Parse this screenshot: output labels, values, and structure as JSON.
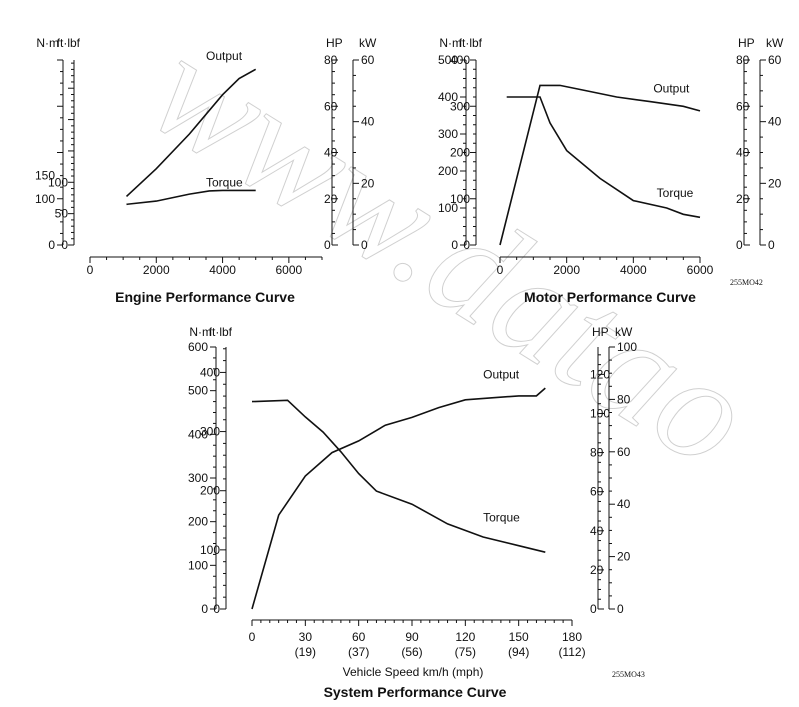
{
  "watermark": "www.datao",
  "chart_data": [
    {
      "id": "engine",
      "type": "line",
      "title": "Engine Performance Curve",
      "xlabel": "",
      "x_ticks": [
        {
          "v": 0,
          "t": "0"
        },
        {
          "v": 2000,
          "t": "2000"
        },
        {
          "v": 4000,
          "t": "4000"
        },
        {
          "v": 6000,
          "t": "6000"
        }
      ],
      "xlim": [
        0,
        7000
      ],
      "axes": [
        {
          "unit": "N·m",
          "lim": [
            0,
            400
          ],
          "ticks": [
            {
              "v": 0,
              "t": "0"
            },
            {
              "v": 100,
              "t": "100"
            },
            {
              "v": 150,
              "t": "150"
            }
          ],
          "minor": 25,
          "major": 100
        },
        {
          "unit": "ft·lbf",
          "lim": [
            0,
            295
          ],
          "ticks": [
            {
              "v": 0,
              "t": "0"
            },
            {
              "v": 50,
              "t": "50"
            },
            {
              "v": 100,
              "t": "100"
            }
          ],
          "minor": 10,
          "major": 50
        },
        {
          "unit": "HP",
          "lim": [
            0,
            80
          ],
          "ticks": [
            {
              "v": 0,
              "t": "0"
            },
            {
              "v": 20,
              "t": "20"
            },
            {
              "v": 40,
              "t": "40"
            },
            {
              "v": 60,
              "t": "60"
            },
            {
              "v": 80,
              "t": "80"
            }
          ],
          "minor": 5,
          "major": 20
        },
        {
          "unit": "kW",
          "lim": [
            0,
            60
          ],
          "ticks": [
            {
              "v": 0,
              "t": "0"
            },
            {
              "v": 20,
              "t": "20"
            },
            {
              "v": 40,
              "t": "40"
            },
            {
              "v": 60,
              "t": "60"
            }
          ],
          "minor": 5,
          "major": 20
        }
      ],
      "series": [
        {
          "name": "Output",
          "axis": 2,
          "x": [
            1100,
            2000,
            3000,
            4000,
            4500,
            5000
          ],
          "y": [
            21,
            33,
            48,
            65,
            72,
            76
          ]
        },
        {
          "name": "Torque",
          "axis": 0,
          "x": [
            1100,
            2000,
            3000,
            3600,
            4000,
            5000
          ],
          "y": [
            88,
            95,
            110,
            117,
            118,
            118
          ]
        }
      ],
      "label_anchors": [
        {
          "x": 3500,
          "y": 80,
          "axis": 2
        },
        {
          "x": 3500,
          "y": 126,
          "axis": 0
        }
      ]
    },
    {
      "id": "motor",
      "type": "line",
      "title": "Motor Performance Curve",
      "code": "255MO42",
      "xlabel": "",
      "x_ticks": [
        {
          "v": 0,
          "t": "0"
        },
        {
          "v": 2000,
          "t": "2000"
        },
        {
          "v": 4000,
          "t": "4000"
        },
        {
          "v": 6000,
          "t": "6000"
        }
      ],
      "xlim": [
        0,
        6000
      ],
      "axes": [
        {
          "unit": "N·m",
          "lim": [
            0,
            500
          ],
          "ticks": [
            {
              "v": 0,
              "t": "0"
            },
            {
              "v": 100,
              "t": "100"
            },
            {
              "v": 200,
              "t": "200"
            },
            {
              "v": 300,
              "t": "300"
            },
            {
              "v": 400,
              "t": "400"
            },
            {
              "v": 500,
              "t": "500"
            }
          ],
          "minor": 25,
          "major": 100
        },
        {
          "unit": "ft·lbf",
          "lim": [
            0,
            400
          ],
          "ticks": [
            {
              "v": 0,
              "t": "0"
            },
            {
              "v": 100,
              "t": "100"
            },
            {
              "v": 200,
              "t": "200"
            },
            {
              "v": 300,
              "t": "300"
            },
            {
              "v": 400,
              "t": "400"
            }
          ],
          "minor": 20,
          "major": 100
        },
        {
          "unit": "HP",
          "lim": [
            0,
            80
          ],
          "ticks": [
            {
              "v": 0,
              "t": "0"
            },
            {
              "v": 20,
              "t": "20"
            },
            {
              "v": 40,
              "t": "40"
            },
            {
              "v": 60,
              "t": "60"
            },
            {
              "v": 80,
              "t": "80"
            }
          ],
          "minor": 5,
          "major": 20
        },
        {
          "unit": "kW",
          "lim": [
            0,
            60
          ],
          "ticks": [
            {
              "v": 0,
              "t": "0"
            },
            {
              "v": 20,
              "t": "20"
            },
            {
              "v": 40,
              "t": "40"
            },
            {
              "v": 60,
              "t": "60"
            }
          ],
          "minor": 5,
          "major": 20
        }
      ],
      "series": [
        {
          "name": "Output",
          "axis": 2,
          "x": [
            0,
            1200,
            1800,
            2500,
            3500,
            4500,
            5500,
            6000
          ],
          "y": [
            0,
            69,
            69,
            67,
            64,
            62,
            60,
            58
          ]
        },
        {
          "name": "Torque",
          "axis": 0,
          "x": [
            200,
            1200,
            1500,
            2000,
            3000,
            4000,
            5000,
            5500,
            6000
          ],
          "y": [
            400,
            400,
            330,
            255,
            180,
            120,
            100,
            83,
            75
          ]
        }
      ],
      "label_anchors": [
        {
          "x": 4600,
          "y": 66,
          "axis": 2
        },
        {
          "x": 4700,
          "y": 130,
          "axis": 0
        }
      ]
    },
    {
      "id": "system",
      "type": "line",
      "title": "System Performance Curve",
      "code": "255MO43",
      "xlabel": "Vehicle Speed km/h (mph)",
      "x_ticks": [
        {
          "v": 0,
          "t": "0"
        },
        {
          "v": 30,
          "t": "30",
          "t2": "(19)"
        },
        {
          "v": 60,
          "t": "60",
          "t2": "(37)"
        },
        {
          "v": 90,
          "t": "90",
          "t2": "(56)"
        },
        {
          "v": 120,
          "t": "120",
          "t2": "(75)"
        },
        {
          "v": 150,
          "t": "150",
          "t2": "(94)"
        },
        {
          "v": 180,
          "t": "180",
          "t2": "(112)"
        }
      ],
      "xlim": [
        0,
        180
      ],
      "axes": [
        {
          "unit": "N·m",
          "lim": [
            0,
            600
          ],
          "ticks": [
            {
              "v": 0,
              "t": "0"
            },
            {
              "v": 100,
              "t": "100"
            },
            {
              "v": 200,
              "t": "200"
            },
            {
              "v": 300,
              "t": "300"
            },
            {
              "v": 400,
              "t": "400"
            },
            {
              "v": 500,
              "t": "500"
            },
            {
              "v": 600,
              "t": "600"
            }
          ],
          "minor": 25,
          "major": 100
        },
        {
          "unit": "ft·lbf",
          "lim": [
            0,
            443
          ],
          "ticks": [
            {
              "v": 0,
              "t": "0"
            },
            {
              "v": 100,
              "t": "100"
            },
            {
              "v": 200,
              "t": "200"
            },
            {
              "v": 300,
              "t": "300"
            },
            {
              "v": 400,
              "t": "400"
            }
          ],
          "minor": 20,
          "major": 100
        },
        {
          "unit": "HP",
          "lim": [
            0,
            134
          ],
          "ticks": [
            {
              "v": 0,
              "t": "0"
            },
            {
              "v": 20,
              "t": "20"
            },
            {
              "v": 40,
              "t": "40"
            },
            {
              "v": 60,
              "t": "60"
            },
            {
              "v": 80,
              "t": "80"
            },
            {
              "v": 100,
              "t": "100"
            },
            {
              "v": 120,
              "t": "120"
            }
          ],
          "minor": 5,
          "major": 20
        },
        {
          "unit": "kW",
          "lim": [
            0,
            100
          ],
          "ticks": [
            {
              "v": 0,
              "t": "0"
            },
            {
              "v": 20,
              "t": "20"
            },
            {
              "v": 40,
              "t": "40"
            },
            {
              "v": 60,
              "t": "60"
            },
            {
              "v": 80,
              "t": "80"
            },
            {
              "v": 100,
              "t": "100"
            }
          ],
          "minor": 5,
          "major": 20
        }
      ],
      "series": [
        {
          "name": "Output",
          "axis": 2,
          "x": [
            0,
            15,
            30,
            45,
            60,
            75,
            90,
            105,
            120,
            135,
            150,
            160,
            165
          ],
          "y": [
            0,
            48,
            68,
            80,
            86,
            94,
            98,
            103,
            107,
            108,
            109,
            109,
            113
          ]
        },
        {
          "name": "Torque",
          "axis": 0,
          "x": [
            0,
            20,
            30,
            40,
            50,
            60,
            70,
            90,
            110,
            130,
            150,
            165
          ],
          "y": [
            475,
            478,
            440,
            405,
            360,
            310,
            270,
            240,
            195,
            165,
            145,
            130
          ]
        }
      ],
      "label_anchors": [
        {
          "x": 130,
          "y": 118,
          "axis": 2
        },
        {
          "x": 130,
          "y": 200,
          "axis": 0
        }
      ]
    }
  ]
}
